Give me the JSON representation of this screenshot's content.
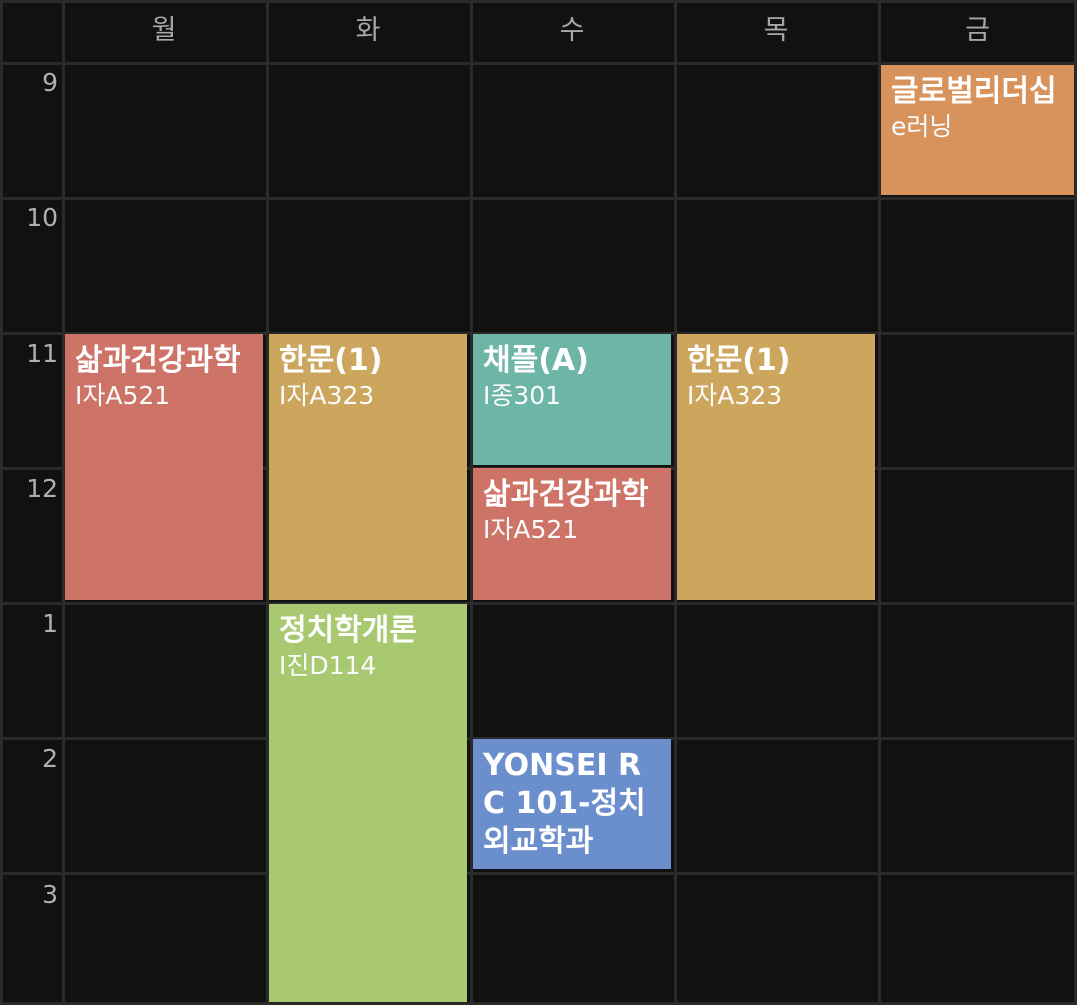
{
  "days": [
    "월",
    "화",
    "수",
    "목",
    "금"
  ],
  "hours": [
    "9",
    "10",
    "11",
    "12",
    "1",
    "2",
    "3"
  ],
  "courses": [
    {
      "id": "global-leadership",
      "name": "글로벌리더십",
      "room": "e러닝",
      "color": "#d8935d"
    },
    {
      "id": "life-health-mon",
      "name": "삶과건강과학",
      "room": "I자A521",
      "color": "#ce7367"
    },
    {
      "id": "hanmun-tue",
      "name": "한문(1)",
      "room": "I자A323",
      "color": "#cca65c"
    },
    {
      "id": "chapel-a",
      "name": "채플(A)",
      "room": "I종301",
      "color": "#6db5a7"
    },
    {
      "id": "hanmun-thu",
      "name": "한문(1)",
      "room": "I자A323",
      "color": "#cca65c"
    },
    {
      "id": "life-health-wed",
      "name": "삶과건강과학",
      "room": "I자A521",
      "color": "#ce7367"
    },
    {
      "id": "intro-politics",
      "name": "정치학개론",
      "room": "I진D114",
      "color": "#a8c970"
    },
    {
      "id": "yonsei-rc",
      "name": "YONSEI RC 101-정치외교학과",
      "room": "",
      "color": "#6b8fcc"
    }
  ]
}
